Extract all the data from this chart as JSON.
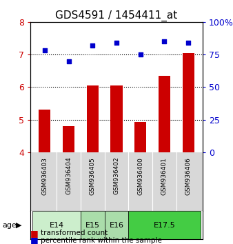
{
  "title": "GDS4591 / 1454411_at",
  "samples": [
    "GSM936403",
    "GSM936404",
    "GSM936405",
    "GSM936402",
    "GSM936400",
    "GSM936401",
    "GSM936406"
  ],
  "bar_values": [
    5.3,
    4.8,
    6.05,
    6.05,
    4.92,
    6.35,
    7.05
  ],
  "scatter_values": [
    78,
    70,
    82,
    84,
    75,
    85,
    84
  ],
  "bar_color": "#cc0000",
  "scatter_color": "#0000cc",
  "ylim_left": [
    4,
    8
  ],
  "ylim_right": [
    0,
    100
  ],
  "yticks_left": [
    4,
    5,
    6,
    7,
    8
  ],
  "yticks_right": [
    0,
    25,
    50,
    75,
    100
  ],
  "ytick_labels_right": [
    "0",
    "25",
    "50",
    "75",
    "100%"
  ],
  "hlines": [
    5,
    6,
    7
  ],
  "age_groups": [
    {
      "label": "E14",
      "spans": [
        0,
        2
      ],
      "color": "#cceecc"
    },
    {
      "label": "E15",
      "spans": [
        2,
        3
      ],
      "color": "#aaddaa"
    },
    {
      "label": "E16",
      "spans": [
        3,
        4
      ],
      "color": "#aaddaa"
    },
    {
      "label": "E17.5",
      "spans": [
        4,
        7
      ],
      "color": "#44cc44"
    }
  ],
  "legend_bar_label": "transformed count",
  "legend_scatter_label": "percentile rank within the sample",
  "bar_width": 0.5,
  "background_color": "#ffffff"
}
